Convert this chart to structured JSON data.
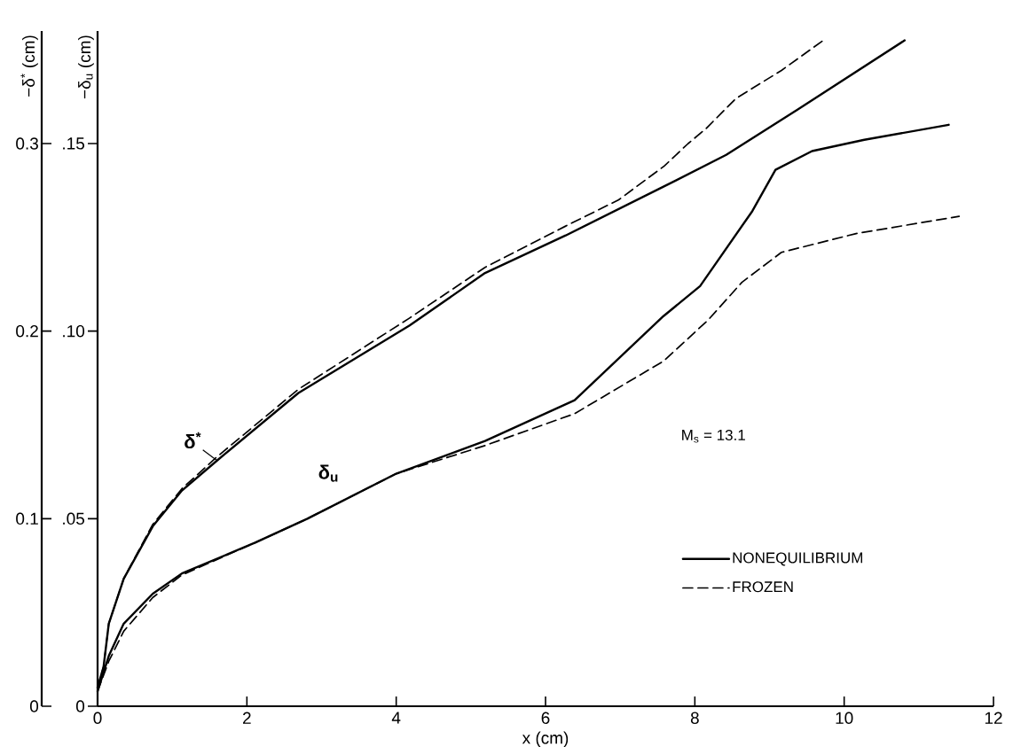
{
  "chart_data": {
    "type": "line",
    "xlabel": "x  (cm)",
    "ylabel": "−δ$^{*}$ (cm)",
    "y2label": "−δ$_{u}$ (cm)",
    "xlim": [
      0,
      12
    ],
    "xticks": [
      0,
      2,
      4,
      6,
      8,
      10,
      12
    ],
    "ylim": [
      0,
      0.36
    ],
    "yticks": [
      0,
      0.1,
      0.2,
      0.3
    ],
    "y2lim": [
      0,
      0.18
    ],
    "y2ticks": [
      0,
      {
        "value": 0.05,
        "label": ".05"
      },
      {
        "value": 0.1,
        "label": ".10"
      },
      {
        "value": 0.15,
        "label": ".15"
      }
    ],
    "legend": "bottom right",
    "marker": "none",
    "annotations": [
      "M$_{s}$ = 13.1",
      {
        "text": "δ$^{*}$",
        "x": 1.6,
        "y": 0.131
      },
      "δ$_{u}$"
    ],
    "series": [
      {
        "name": "NONEQUILIBRIUM",
        "color": "#000000",
        "line_style": "solid",
        "x": [
          0,
          0.08,
          0.15,
          0.35,
          0.74,
          1.13,
          1.6,
          2.69,
          4.18,
          5.19,
          6.27,
          7.58,
          8.42,
          9.37,
          10.81
        ],
        "values": [
          0.01,
          0.021,
          0.044,
          0.068,
          0.096,
          0.115,
          0.131,
          0.167,
          0.203,
          0.231,
          0.251,
          0.277,
          0.294,
          0.318,
          0.355
        ]
      },
      {
        "name": "FROZEN",
        "color": "#000000",
        "line_style": "dashed",
        "x": [
          0,
          0.08,
          0.15,
          0.35,
          0.74,
          1.13,
          1.6,
          2.69,
          4.18,
          5.19,
          6.27,
          6.98,
          7.59,
          7.91,
          8.15,
          8.55,
          9.16,
          9.72
        ],
        "values": [
          0.01,
          0.021,
          0.044,
          0.068,
          0.097,
          0.116,
          0.133,
          0.169,
          0.207,
          0.234,
          0.256,
          0.27,
          0.288,
          0.3,
          0.308,
          0.324,
          0.339,
          0.355
        ]
      },
      {
        "color": "#000000",
        "line_style": "solid",
        "axis": "y2",
        "x": [
          0,
          0.15,
          0.35,
          0.74,
          1.13,
          2.11,
          2.81,
          4.0,
          5.19,
          6.39,
          7.58,
          8.07,
          8.77,
          9.08,
          9.57,
          10.27,
          11.4
        ],
        "values": [
          0.004,
          0.0134,
          0.022,
          0.03,
          0.0354,
          0.0436,
          0.05,
          0.062,
          0.0707,
          0.0816,
          0.104,
          0.112,
          0.132,
          0.143,
          0.148,
          0.151,
          0.155
        ]
      },
      {
        "color": "#000000",
        "line_style": "dashed",
        "axis": "y2",
        "x": [
          0,
          0.15,
          0.35,
          0.74,
          1.13,
          2.11,
          2.81,
          4.0,
          5.19,
          6.39,
          7.58,
          8.18,
          8.63,
          9.16,
          10.16,
          11.54
        ],
        "values": [
          0.004,
          0.012,
          0.02,
          0.029,
          0.035,
          0.0436,
          0.05,
          0.062,
          0.0695,
          0.078,
          0.092,
          0.103,
          0.113,
          0.121,
          0.126,
          0.1306
        ]
      }
    ]
  }
}
